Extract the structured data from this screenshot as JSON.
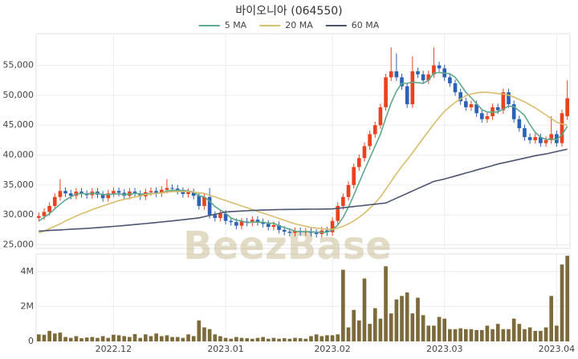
{
  "chart_data": [
    {
      "type": "candlestick",
      "title": "바이오니아 (064550)",
      "watermark": "BeezBase",
      "up_color": "#e8421e",
      "down_color": "#2a62b8",
      "grid": true,
      "ylim": [
        24400,
        60300
      ],
      "yticks": [
        {
          "value": 25000,
          "label": "25,000"
        },
        {
          "value": 30000,
          "label": "30,000"
        },
        {
          "value": 35000,
          "label": "35,000"
        },
        {
          "value": 40000,
          "label": "40,000"
        },
        {
          "value": 45000,
          "label": "45,000"
        },
        {
          "value": 50000,
          "label": "50,000"
        },
        {
          "value": 55000,
          "label": "55,000"
        }
      ],
      "open": [
        29500,
        29800,
        30500,
        31500,
        33000,
        34000,
        33600,
        33200,
        33900,
        33500,
        33300,
        33900,
        33400,
        32800,
        33600,
        34000,
        33700,
        33200,
        33900,
        33500,
        33100,
        33800,
        34000,
        33600,
        34200,
        34500,
        34400,
        34000,
        33500,
        33800,
        33200,
        31500,
        33000,
        30000,
        29500,
        30200,
        29000,
        28800,
        28200,
        28900,
        28700,
        29200,
        28800,
        28500,
        28000,
        28300,
        27500,
        27200,
        27000,
        27300,
        27100,
        27200,
        27000,
        26800,
        27400,
        27100,
        29000,
        31500,
        33000,
        35000,
        38000,
        39500,
        41500,
        43500,
        45000,
        48000,
        53000,
        54000,
        53000,
        51500,
        48500,
        54000,
        53500,
        52500,
        53500,
        55000,
        54500,
        53000,
        52000,
        50500,
        49000,
        48000,
        48500,
        47000,
        46000,
        46500,
        48000,
        47500,
        50500,
        48500,
        46000,
        44500,
        43000,
        42500,
        43000,
        42000,
        42500,
        43500,
        42000,
        46500
      ],
      "high": [
        30400,
        31100,
        32100,
        33600,
        36000,
        34600,
        34200,
        34500,
        34500,
        34100,
        34500,
        34500,
        34000,
        34200,
        34600,
        34600,
        34300,
        34500,
        34500,
        34100,
        34400,
        34600,
        34600,
        34800,
        36000,
        35100,
        35000,
        34600,
        34400,
        34400,
        33800,
        33600,
        34500,
        30600,
        30800,
        30800,
        29600,
        29400,
        29500,
        29500,
        29800,
        29800,
        29400,
        29100,
        28900,
        28900,
        28100,
        27800,
        27900,
        27900,
        27800,
        27800,
        27600,
        28000,
        28000,
        29600,
        32100,
        33600,
        35600,
        38600,
        40100,
        42100,
        44100,
        45600,
        48600,
        53600,
        58000,
        57000,
        53600,
        52100,
        56500,
        54600,
        54100,
        54100,
        58000,
        55600,
        55100,
        53600,
        52600,
        51100,
        49600,
        49100,
        49100,
        47600,
        47100,
        48600,
        48600,
        51100,
        51100,
        49100,
        46600,
        45100,
        43600,
        43600,
        43600,
        43100,
        46500,
        44100,
        47600,
        52500
      ],
      "low": [
        28900,
        29200,
        29900,
        30900,
        32400,
        33000,
        32600,
        32600,
        32900,
        32700,
        32700,
        32800,
        32200,
        32200,
        33000,
        33100,
        32600,
        32600,
        32900,
        32500,
        32500,
        33200,
        33000,
        33000,
        33600,
        33800,
        33400,
        32900,
        32900,
        32600,
        30900,
        30900,
        29400,
        28900,
        28900,
        28400,
        28200,
        27600,
        27600,
        28100,
        28100,
        28200,
        27900,
        27400,
        27400,
        26900,
        26600,
        26400,
        26400,
        26500,
        26500,
        26400,
        26200,
        26200,
        26500,
        26500,
        28400,
        30900,
        32400,
        34400,
        37400,
        38900,
        40900,
        42900,
        44400,
        47400,
        52400,
        52400,
        50900,
        47900,
        47900,
        52900,
        51900,
        51900,
        52900,
        53900,
        52400,
        51400,
        49900,
        48400,
        47400,
        47400,
        46400,
        45400,
        45400,
        45900,
        46900,
        46900,
        47900,
        45400,
        43900,
        42400,
        41900,
        41900,
        41400,
        41400,
        41900,
        41400,
        41400,
        45900
      ],
      "close": [
        29800,
        30500,
        31500,
        33000,
        34000,
        33600,
        33200,
        33900,
        33500,
        33300,
        33900,
        33400,
        32800,
        33600,
        34000,
        33700,
        33200,
        33900,
        33500,
        33100,
        33800,
        34000,
        33600,
        34200,
        34500,
        34400,
        34000,
        33500,
        33800,
        33200,
        31500,
        33000,
        30000,
        29500,
        30200,
        29000,
        28800,
        28200,
        28900,
        28700,
        29200,
        28800,
        28500,
        28000,
        28300,
        27500,
        27200,
        27000,
        27300,
        27100,
        27200,
        27000,
        26800,
        27400,
        27100,
        29000,
        31500,
        33000,
        35000,
        38000,
        39500,
        41500,
        43500,
        45000,
        48000,
        53000,
        54000,
        53000,
        51500,
        48500,
        54000,
        53500,
        52500,
        53500,
        55000,
        54500,
        53000,
        52000,
        50500,
        49000,
        48000,
        48500,
        47000,
        46000,
        46500,
        48000,
        47500,
        50500,
        48500,
        46000,
        44500,
        43000,
        42500,
        43000,
        42000,
        42500,
        43500,
        42000,
        47000,
        49500
      ],
      "series": [
        {
          "name": "5 MA",
          "color": "#5ea88c",
          "values": [
            29000,
            29600,
            30200,
            31000,
            31800,
            32500,
            33000,
            33500,
            33600,
            33500,
            33600,
            33600,
            33400,
            33400,
            33500,
            33500,
            33400,
            33500,
            33600,
            33500,
            33500,
            33600,
            33600,
            33700,
            34000,
            34100,
            34100,
            34100,
            34000,
            33800,
            33200,
            33000,
            32300,
            31400,
            30800,
            30300,
            29500,
            29100,
            29000,
            28700,
            28800,
            28800,
            28800,
            28600,
            28600,
            28200,
            27900,
            27600,
            27300,
            27200,
            27200,
            27200,
            27100,
            27100,
            27100,
            27500,
            28300,
            29600,
            31300,
            33300,
            35400,
            37500,
            39500,
            41500,
            43500,
            46200,
            48700,
            50700,
            52000,
            52000,
            52200,
            52100,
            52000,
            52500,
            53700,
            53800,
            53700,
            53600,
            53000,
            51800,
            50500,
            49600,
            48600,
            47600,
            47200,
            47200,
            47200,
            47700,
            48200,
            48100,
            47400,
            46600,
            45100,
            43800,
            43000,
            42600,
            42700,
            42600,
            43400,
            44800
          ]
        },
        {
          "name": "20 MA",
          "color": "#d8bd6c",
          "values": [
            27000,
            27300,
            27700,
            28100,
            28500,
            29000,
            29400,
            29800,
            30200,
            30500,
            30900,
            31200,
            31500,
            31800,
            32100,
            32400,
            32600,
            32800,
            33000,
            33200,
            33400,
            33500,
            33600,
            33700,
            33800,
            33900,
            33900,
            33900,
            33900,
            33800,
            33700,
            33600,
            33300,
            33000,
            32700,
            32400,
            32100,
            31800,
            31500,
            31200,
            30900,
            30600,
            30300,
            30000,
            29700,
            29400,
            29100,
            28800,
            28500,
            28300,
            28100,
            27900,
            27800,
            27700,
            27600,
            27600,
            27800,
            28100,
            28500,
            29000,
            29600,
            30300,
            31100,
            32000,
            33000,
            34300,
            35600,
            36900,
            38100,
            39200,
            40400,
            41600,
            42800,
            44000,
            45200,
            46300,
            47300,
            48100,
            48800,
            49400,
            49900,
            50200,
            50400,
            50500,
            50500,
            50400,
            50300,
            50200,
            50000,
            49700,
            49300,
            48900,
            48400,
            47900,
            47300,
            46700,
            46100,
            45500,
            45200,
            45000
          ]
        },
        {
          "name": "60 MA",
          "color": "#4b5572",
          "values": [
            27300,
            27350,
            27400,
            27450,
            27500,
            27550,
            27600,
            27650,
            27700,
            27750,
            27800,
            27870,
            27940,
            28010,
            28080,
            28150,
            28230,
            28310,
            28390,
            28470,
            28550,
            28640,
            28730,
            28820,
            28910,
            29000,
            29100,
            29200,
            29300,
            29400,
            29500,
            29700,
            29900,
            30100,
            30300,
            30500,
            30550,
            30600,
            30650,
            30700,
            30750,
            30780,
            30810,
            30840,
            30870,
            30900,
            30910,
            30920,
            30930,
            30940,
            30950,
            30960,
            30970,
            30980,
            30990,
            31000,
            31100,
            31200,
            31300,
            31400,
            31500,
            31600,
            31700,
            31800,
            31900,
            32000,
            32400,
            32800,
            33200,
            33600,
            34000,
            34400,
            34800,
            35200,
            35600,
            35800,
            36000,
            36250,
            36500,
            36750,
            37000,
            37250,
            37500,
            37750,
            38000,
            38250,
            38500,
            38700,
            38900,
            39100,
            39300,
            39500,
            39700,
            39900,
            40050,
            40200,
            40400,
            40600,
            40800,
            41000
          ]
        }
      ]
    },
    {
      "type": "bar",
      "color": "#7d6a3a",
      "grid": true,
      "ylim": [
        0,
        5000000
      ],
      "yticks": [
        0,
        {
          "value": 2000000,
          "label": "2M"
        },
        {
          "value": 4000000,
          "label": "4M"
        }
      ],
      "categories": [
        null,
        null,
        null,
        null,
        null,
        null,
        null,
        null,
        null,
        null,
        null,
        null,
        null,
        null,
        "2022.12",
        null,
        null,
        null,
        null,
        null,
        null,
        null,
        null,
        null,
        null,
        null,
        null,
        null,
        null,
        null,
        null,
        null,
        null,
        null,
        null,
        "2023.01",
        null,
        null,
        null,
        null,
        null,
        null,
        null,
        null,
        null,
        null,
        null,
        null,
        null,
        null,
        null,
        null,
        null,
        null,
        null,
        "2023.02",
        null,
        null,
        null,
        null,
        null,
        null,
        null,
        null,
        null,
        null,
        null,
        null,
        null,
        null,
        null,
        null,
        null,
        null,
        null,
        null,
        "2023.03",
        null,
        null,
        null,
        null,
        null,
        null,
        null,
        null,
        null,
        null,
        null,
        null,
        null,
        null,
        null,
        null,
        null,
        null,
        null,
        null,
        "2023.04",
        null,
        null
      ],
      "values": [
        400000,
        380000,
        600000,
        450000,
        500000,
        250000,
        200000,
        300000,
        180000,
        220000,
        250000,
        200000,
        300000,
        200000,
        380000,
        350000,
        300000,
        250000,
        420000,
        200000,
        400000,
        300000,
        450000,
        300000,
        350000,
        250000,
        250000,
        200000,
        400000,
        300000,
        1200000,
        800000,
        700000,
        400000,
        300000,
        200000,
        150000,
        250000,
        200000,
        180000,
        150000,
        200000,
        250000,
        150000,
        200000,
        150000,
        180000,
        150000,
        200000,
        180000,
        150000,
        300000,
        400000,
        300000,
        350000,
        350000,
        400000,
        4100000,
        800000,
        1800000,
        1200000,
        3600000,
        1000000,
        1900000,
        1300000,
        4300000,
        1600000,
        2400000,
        2600000,
        2800000,
        1600000,
        2500000,
        1500000,
        900000,
        900000,
        1400000,
        1300000,
        700000,
        700000,
        750000,
        700000,
        700000,
        650000,
        650000,
        900000,
        700000,
        1000000,
        700000,
        700000,
        1300000,
        1000000,
        700000,
        800000,
        600000,
        600000,
        800000,
        2600000,
        900000,
        4400000,
        4900000
      ]
    }
  ]
}
